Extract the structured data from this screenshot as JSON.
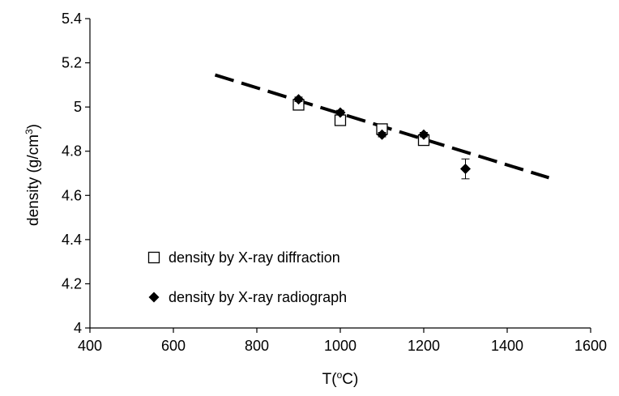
{
  "chart_data": {
    "type": "scatter",
    "xlabel_main": "T(",
    "xlabel_sup": "o",
    "xlabel_tail": "C)",
    "ylabel_main": "density (g/cm",
    "ylabel_sup": "3",
    "ylabel_tail": ")",
    "xlim": [
      400,
      1600
    ],
    "ylim": [
      4.0,
      5.4
    ],
    "xticks": [
      400,
      600,
      800,
      1000,
      1200,
      1400,
      1600
    ],
    "yticks": [
      4,
      4.2,
      4.4,
      4.6,
      4.8,
      5,
      5.2,
      5.4
    ],
    "ytick_labels": [
      "4",
      "4.2",
      "4.4",
      "4.6",
      "4.8",
      "5",
      "5.2",
      "5.4"
    ],
    "grid": false,
    "legend_position": "bottom-left",
    "series": [
      {
        "name": "density by X-ray diffraction",
        "marker": "open-square",
        "color": "#000000",
        "points": [
          {
            "x": 900,
            "y": 5.01
          },
          {
            "x": 1000,
            "y": 4.94
          },
          {
            "x": 1100,
            "y": 4.9
          },
          {
            "x": 1200,
            "y": 4.85
          }
        ]
      },
      {
        "name": "density by X-ray radiograph",
        "marker": "filled-diamond",
        "color": "#000000",
        "points": [
          {
            "x": 900,
            "y": 5.035,
            "err": 0.01
          },
          {
            "x": 1000,
            "y": 4.975,
            "err": 0.01
          },
          {
            "x": 1100,
            "y": 4.875,
            "err": 0.01
          },
          {
            "x": 1200,
            "y": 4.875,
            "err": 0.01
          },
          {
            "x": 1300,
            "y": 4.72,
            "err": 0.045
          }
        ]
      }
    ],
    "trendline": {
      "style": "dashed",
      "color": "#000000",
      "x": [
        700,
        1500
      ],
      "y": [
        5.145,
        4.68
      ]
    }
  }
}
